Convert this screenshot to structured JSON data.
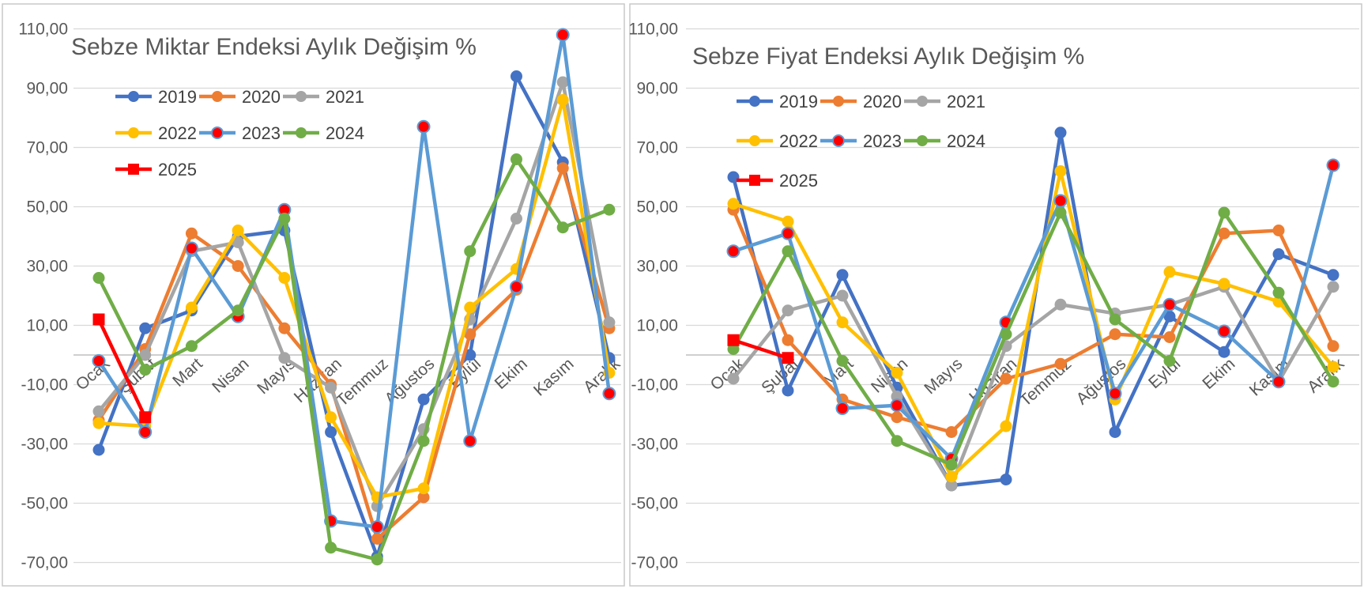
{
  "window": {
    "description": "Two Excel-style line charts side by side, Turkish vegetable index monthly change"
  },
  "chart_data": [
    {
      "type": "line",
      "title": "Sebze Miktar Endeksi Aylık Değişim %",
      "categories": [
        "Ocak",
        "Şubat",
        "Mart",
        "Nisan",
        "Mayıs",
        "Haziran",
        "Temmuz",
        "Ağustos",
        "Eylül",
        "Ekim",
        "Kasım",
        "Aralık"
      ],
      "ylim": [
        -70,
        110
      ],
      "ytick_step": 20,
      "yticks": [
        "110,00",
        "90,00",
        "70,00",
        "50,00",
        "30,00",
        "10,00",
        "-10,00",
        "-30,00",
        "-50,00",
        "-70,00"
      ],
      "grid": true,
      "legend_position": "inside-top-left",
      "legend_rows": [
        [
          "2019",
          "2020",
          "2021"
        ],
        [
          "2022",
          "2023",
          "2024"
        ],
        [
          "2025"
        ]
      ],
      "series": [
        {
          "name": "2019",
          "color": "#4472C4",
          "marker": "circle",
          "marker_color": "#4472C4",
          "values": [
            -32,
            9,
            15,
            40,
            42,
            -26,
            -68,
            -15,
            0,
            94,
            65,
            -1
          ]
        },
        {
          "name": "2020",
          "color": "#ED7D31",
          "marker": "circle",
          "marker_color": "#ED7D31",
          "values": [
            -22,
            2,
            41,
            30,
            9,
            -10,
            -62,
            -48,
            7,
            22,
            63,
            9
          ]
        },
        {
          "name": "2021",
          "color": "#A5A5A5",
          "marker": "circle",
          "marker_color": "#A5A5A5",
          "values": [
            -19,
            0,
            35,
            38,
            -1,
            -11,
            -51,
            -25,
            12,
            46,
            92,
            11
          ]
        },
        {
          "name": "2022",
          "color": "#FFC000",
          "marker": "circle",
          "marker_color": "#FFC000",
          "values": [
            -23,
            -24,
            16,
            42,
            26,
            -21,
            -48,
            -45,
            16,
            29,
            86,
            -6
          ]
        },
        {
          "name": "2023",
          "color": "#5B9BD5",
          "marker": "circle",
          "marker_color": "#FF0000",
          "values": [
            -2,
            -26,
            36,
            13,
            49,
            -56,
            -58,
            77,
            -29,
            23,
            108,
            -13
          ]
        },
        {
          "name": "2024",
          "color": "#70AD47",
          "marker": "circle",
          "marker_color": "#70AD47",
          "values": [
            26,
            -5,
            3,
            15,
            46,
            -65,
            -69,
            -29,
            35,
            66,
            43,
            49
          ]
        },
        {
          "name": "2025",
          "color": "#FF0000",
          "marker": "square",
          "marker_color": "#FF0000",
          "values": [
            12,
            -21,
            null,
            null,
            null,
            null,
            null,
            null,
            null,
            null,
            null,
            null
          ]
        }
      ]
    },
    {
      "type": "line",
      "title": "Sebze Fiyat Endeksi Aylık Değişim %",
      "categories": [
        "Ocak",
        "Şubat",
        "Mart",
        "Nisan",
        "Mayıs",
        "Haziran",
        "Temmuz",
        "Ağustos",
        "Eylül",
        "Ekim",
        "Kasım",
        "Aralık"
      ],
      "ylim": [
        -70,
        110
      ],
      "ytick_step": 20,
      "yticks": [
        "110,00",
        "90,00",
        "70,00",
        "50,00",
        "30,00",
        "10,00",
        "-10,00",
        "-30,00",
        "-50,00",
        "-70,00"
      ],
      "grid": true,
      "legend_position": "inside-top-left",
      "legend_rows": [
        [
          "2019",
          "2020",
          "2021"
        ],
        [
          "2022",
          "2023",
          "2024"
        ],
        [
          "2025"
        ]
      ],
      "series": [
        {
          "name": "2019",
          "color": "#4472C4",
          "marker": "circle",
          "marker_color": "#4472C4",
          "values": [
            60,
            -12,
            27,
            -11,
            -44,
            -42,
            75,
            -26,
            13,
            1,
            34,
            27
          ]
        },
        {
          "name": "2020",
          "color": "#ED7D31",
          "marker": "circle",
          "marker_color": "#ED7D31",
          "values": [
            49,
            5,
            -15,
            -21,
            -26,
            -8,
            -3,
            7,
            6,
            41,
            42,
            3
          ]
        },
        {
          "name": "2021",
          "color": "#A5A5A5",
          "marker": "circle",
          "marker_color": "#A5A5A5",
          "values": [
            -8,
            15,
            20,
            -14,
            -44,
            3,
            17,
            14,
            17,
            23,
            -9,
            23
          ]
        },
        {
          "name": "2022",
          "color": "#FFC000",
          "marker": "circle",
          "marker_color": "#FFC000",
          "values": [
            51,
            45,
            11,
            -6,
            -41,
            -24,
            62,
            -15,
            28,
            24,
            18,
            -4
          ]
        },
        {
          "name": "2023",
          "color": "#5B9BD5",
          "marker": "circle",
          "marker_color": "#FF0000",
          "values": [
            35,
            41,
            -18,
            -17,
            -35,
            11,
            52,
            -13,
            17,
            8,
            -9,
            64
          ]
        },
        {
          "name": "2024",
          "color": "#70AD47",
          "marker": "circle",
          "marker_color": "#70AD47",
          "values": [
            2,
            35,
            -2,
            -29,
            -37,
            7,
            48,
            12,
            -2,
            48,
            21,
            -9
          ]
        },
        {
          "name": "2025",
          "color": "#FF0000",
          "marker": "square",
          "marker_color": "#FF0000",
          "values": [
            5,
            -1,
            null,
            null,
            null,
            null,
            null,
            null,
            null,
            null,
            null,
            null
          ]
        }
      ]
    }
  ],
  "colors": {
    "grid": "#D9D9D9",
    "axis": "#BFBFBF",
    "panel_border": "#C9C9C9",
    "text": "#595959"
  }
}
